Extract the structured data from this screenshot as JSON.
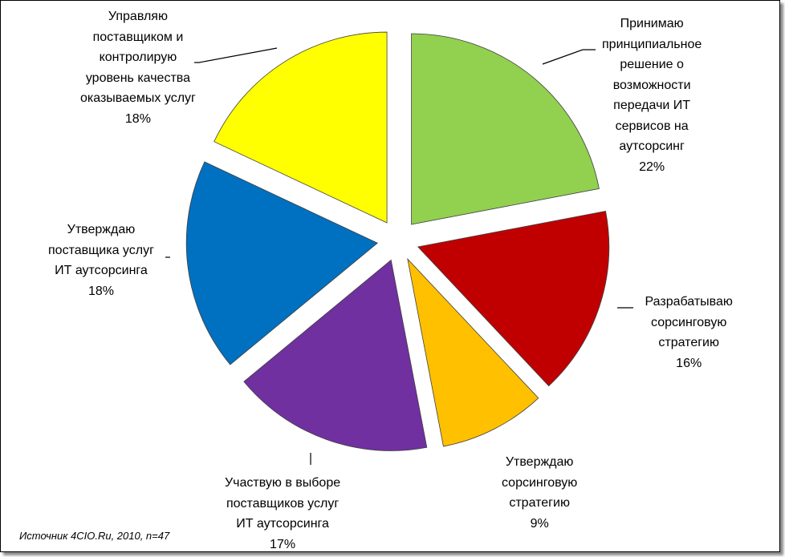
{
  "chart_data": {
    "type": "pie",
    "exploded": true,
    "slices": [
      {
        "lines": [
          "Принимаю",
          "принципиальное",
          "решение о",
          "возможности",
          "передачи ИТ",
          "сервисов на",
          "аутсорсинг"
        ],
        "pct_label": "22%",
        "value": 22,
        "color": "#92d050"
      },
      {
        "lines": [
          "Разрабатываю",
          "сорсинговую",
          "стратегию"
        ],
        "pct_label": "16%",
        "value": 16,
        "color": "#c00000"
      },
      {
        "lines": [
          "Утверждаю",
          "сорсинговую",
          "стратегию"
        ],
        "pct_label": "9%",
        "value": 9,
        "color": "#ffc000"
      },
      {
        "lines": [
          "Участвую в выборе",
          "поставщиков услуг",
          "ИТ аутсорсинга"
        ],
        "pct_label": "17%",
        "value": 17,
        "color": "#7030a0"
      },
      {
        "lines": [
          "Утверждаю",
          "поставщика услуг",
          "ИТ аутсорсинга"
        ],
        "pct_label": "18%",
        "value": 18,
        "color": "#0070c0"
      },
      {
        "lines": [
          "Управляю",
          "поставщиком и",
          "контролирую",
          "уровень качества",
          "оказываемых услуг"
        ],
        "pct_label": "18%",
        "value": 18,
        "color": "#ffff00"
      }
    ]
  },
  "source_note": "Источник 4CIO.Ru, 2010, n=47"
}
